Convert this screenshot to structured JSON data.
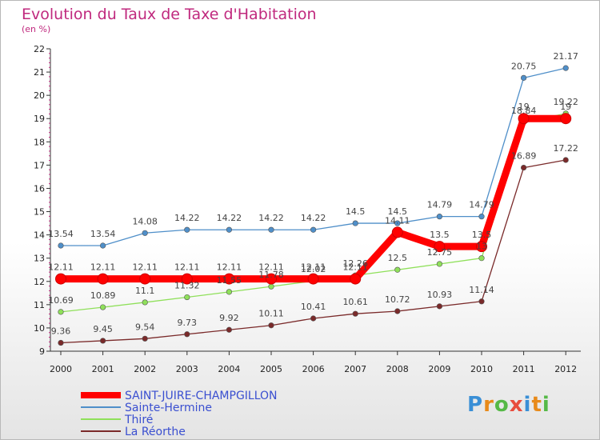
{
  "title": "Evolution du Taux de Taxe d'Habitation",
  "subtitle": "(en %)",
  "logo": "Proxiti",
  "chart_data": {
    "type": "line",
    "x": [
      "2000",
      "2001",
      "2002",
      "2003",
      "2004",
      "2005",
      "2006",
      "2007",
      "2008",
      "2009",
      "2010",
      "2011",
      "2012"
    ],
    "ylim": [
      9,
      22
    ],
    "yticks": [
      9,
      10,
      11,
      12,
      13,
      14,
      15,
      16,
      17,
      18,
      19,
      20,
      21,
      22
    ],
    "legend": "bottom-left",
    "series": [
      {
        "name": "SAINT-JUIRE-CHAMPGILLON",
        "color": "#ff0000",
        "values": [
          12.11,
          12.11,
          12.11,
          12.11,
          12.11,
          12.11,
          12.11,
          12.11,
          14.11,
          13.5,
          13.5,
          19,
          19
        ]
      },
      {
        "name": "Sainte-Hermine",
        "color": "#4f8fc9",
        "values": [
          13.54,
          13.54,
          14.08,
          14.22,
          14.22,
          14.22,
          14.22,
          14.5,
          14.5,
          14.79,
          14.79,
          20.75,
          21.17
        ]
      },
      {
        "name": "Thiré",
        "color": "#8fe05a",
        "values": [
          10.69,
          10.89,
          11.1,
          11.32,
          11.55,
          11.78,
          12.02,
          12.26,
          12.5,
          12.75,
          13,
          18.84,
          19.22
        ]
      },
      {
        "name": "La Réorthe",
        "color": "#7a2a2a",
        "values": [
          9.36,
          9.45,
          9.54,
          9.73,
          9.92,
          10.11,
          10.41,
          10.61,
          10.72,
          10.93,
          11.14,
          16.89,
          17.22
        ]
      }
    ],
    "labels": [
      [
        "12.11",
        "12.11",
        "12.11",
        "12.11",
        "12.11",
        "12.11",
        "12.11",
        "12.11",
        "14.11",
        "13.5",
        "13.5",
        "19",
        "19"
      ],
      [
        "13.54",
        "13.54",
        "14.08",
        "14.22",
        "14.22",
        "14.22",
        "14.22",
        "14.5",
        "14.5",
        "14.79",
        "14.79",
        "20.75",
        "21.17"
      ],
      [
        "10.69",
        "10.89",
        "11.1",
        "11.32",
        "11.55",
        "11.78",
        "12.02",
        "12.26",
        "12.5",
        "12.75",
        "13",
        "18.84",
        "19.22"
      ],
      [
        "9.36",
        "9.45",
        "9.54",
        "9.73",
        "9.92",
        "10.11",
        "10.41",
        "10.61",
        "10.72",
        "10.93",
        "11.14",
        "16.89",
        "17.22"
      ]
    ]
  }
}
